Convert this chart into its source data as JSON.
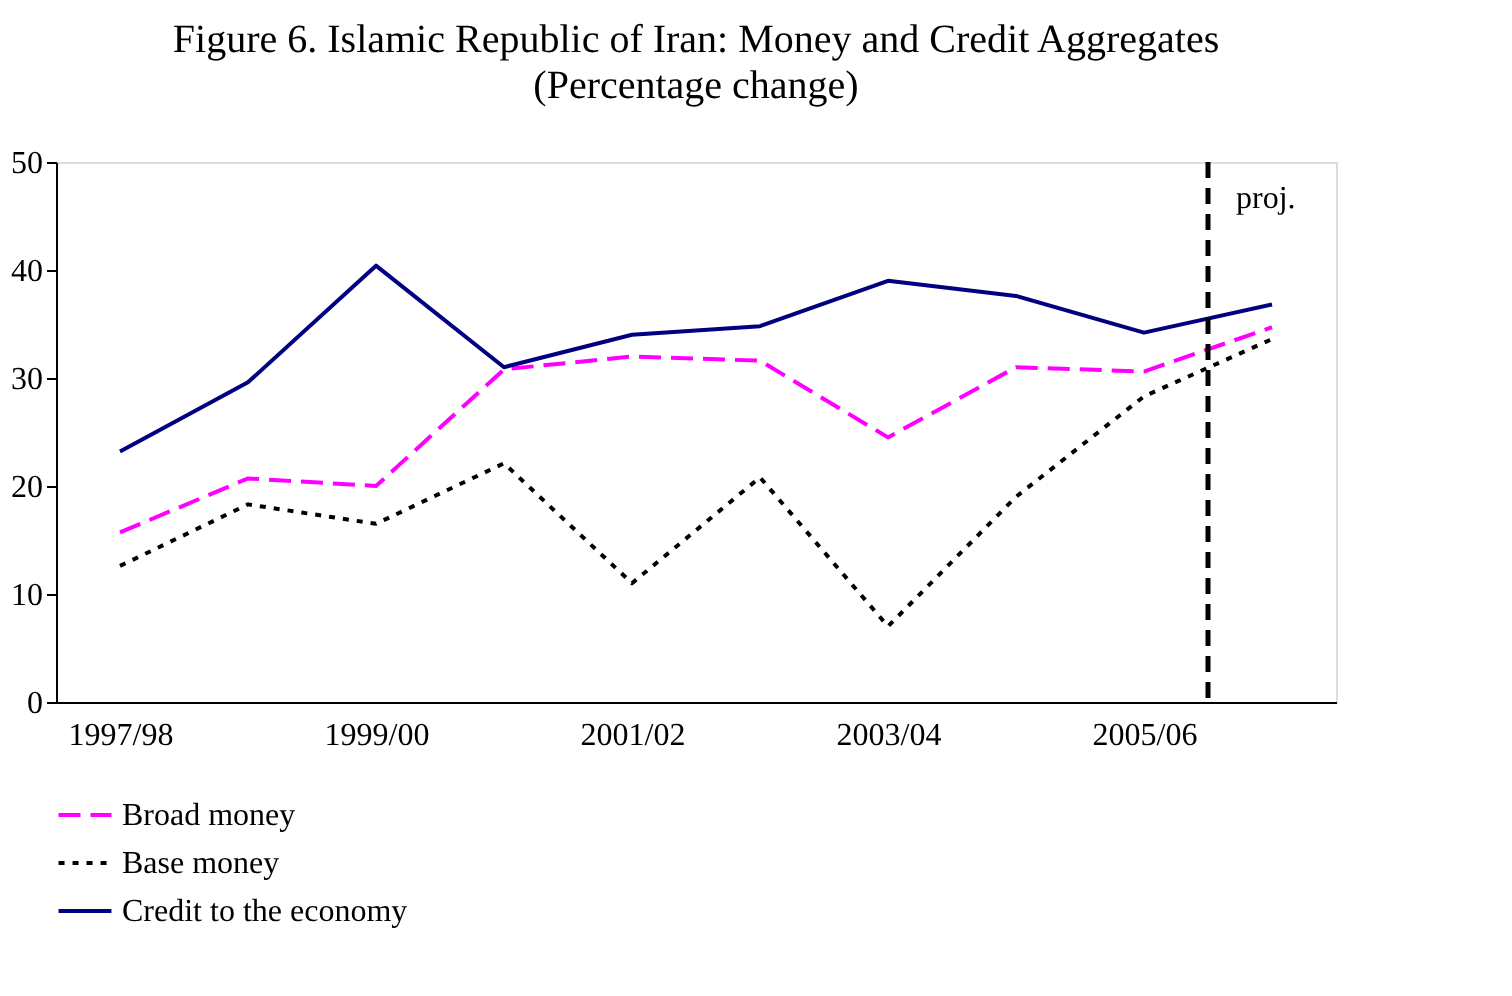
{
  "chart_data": {
    "type": "line",
    "title": "Figure 6. Islamic Republic of Iran: Money and Credit Aggregates",
    "subtitle": "(Percentage change)",
    "categories": [
      "1997/98",
      null,
      "1999/00",
      null,
      "2001/02",
      null,
      "2003/04",
      null,
      "2005/06",
      null
    ],
    "series": [
      {
        "name": "Broad money",
        "color": "#ff00ff",
        "line_style": "dashed",
        "values": [
          15.7,
          20.7,
          20.0,
          30.8,
          32.0,
          31.6,
          24.5,
          31.0,
          30.6,
          34.7
        ]
      },
      {
        "name": "Base money",
        "color": "#000000",
        "line_style": "dotted",
        "values": [
          12.6,
          18.3,
          16.5,
          22.1,
          11.0,
          20.8,
          7.0,
          19.0,
          28.3,
          33.6
        ]
      },
      {
        "name": "Credit to the economy",
        "color": "#000080",
        "line_style": "solid",
        "values": [
          23.2,
          29.6,
          40.4,
          31.0,
          34.0,
          34.8,
          39.0,
          37.6,
          34.2,
          36.8
        ]
      }
    ],
    "ylim": [
      0,
      50
    ],
    "yticks": [
      0,
      10,
      20,
      30,
      40,
      50
    ],
    "grid": false,
    "legend": "bottom",
    "marker": "none",
    "annotations": [
      "proj."
    ]
  }
}
